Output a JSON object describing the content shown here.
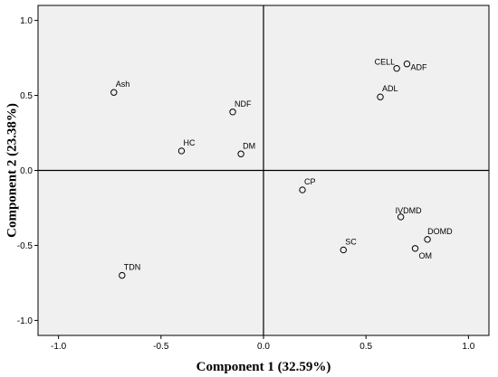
{
  "chart_data": {
    "type": "scatter",
    "title": "",
    "xlabel": "Component 1 (32.59%)",
    "ylabel": "Component 2 (23.38%)",
    "xlim": [
      -1.1,
      1.1
    ],
    "ylim": [
      -1.1,
      1.1
    ],
    "xticks": [
      -1.0,
      -0.5,
      0.0,
      0.5,
      1.0
    ],
    "yticks": [
      -1.0,
      -0.5,
      0.0,
      0.5,
      1.0
    ],
    "xtick_labels": [
      "-1.0",
      "-0.5",
      "0.0",
      "0.5",
      "1.0"
    ],
    "ytick_labels": [
      "-1.0",
      "-0.5",
      "0.0",
      "0.5",
      "1.0"
    ],
    "grid": false,
    "reference_lines": {
      "x": 0,
      "y": 0
    },
    "colors": {
      "plot_background": "#f0f0f0",
      "marker": "#000000"
    },
    "points": [
      {
        "label": "Ash",
        "x": -0.73,
        "y": 0.52
      },
      {
        "label": "NDF",
        "x": -0.15,
        "y": 0.39
      },
      {
        "label": "HC",
        "x": -0.4,
        "y": 0.13
      },
      {
        "label": "DM",
        "x": -0.11,
        "y": 0.11
      },
      {
        "label": "CELL",
        "x": 0.65,
        "y": 0.68
      },
      {
        "label": "ADF",
        "x": 0.7,
        "y": 0.71
      },
      {
        "label": "ADL",
        "x": 0.57,
        "y": 0.49
      },
      {
        "label": "CP",
        "x": 0.19,
        "y": -0.13
      },
      {
        "label": "IVDMD",
        "x": 0.67,
        "y": -0.31
      },
      {
        "label": "DOMD",
        "x": 0.8,
        "y": -0.46
      },
      {
        "label": "OM",
        "x": 0.74,
        "y": -0.52
      },
      {
        "label": "SC",
        "x": 0.39,
        "y": -0.53
      },
      {
        "label": "TDN",
        "x": -0.69,
        "y": -0.7
      }
    ]
  }
}
